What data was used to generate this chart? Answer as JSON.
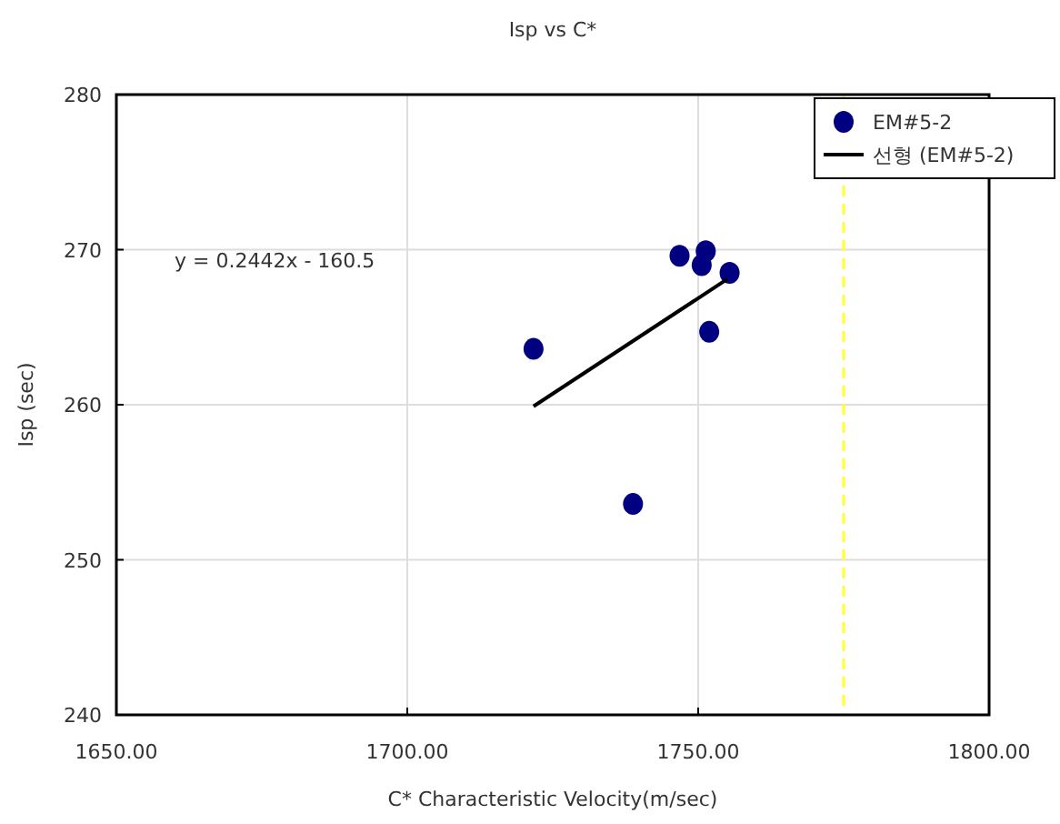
{
  "chart_data": {
    "type": "scatter",
    "title": "Isp vs C*",
    "xlabel": "C* Characteristic Velocity(m/sec)",
    "ylabel": "Isp (sec)",
    "xlim": [
      1650,
      1800
    ],
    "xticks": [
      {
        "value": 1650,
        "label": "1650.00"
      },
      {
        "value": 1700,
        "label": "1700.00"
      },
      {
        "value": 1750,
        "label": "1750.00"
      },
      {
        "value": 1800,
        "label": "1800.00"
      }
    ],
    "ylim": [
      240,
      280
    ],
    "yticks": [
      240,
      250,
      260,
      270,
      280
    ],
    "grid": true,
    "legend": "top right",
    "annotations": [
      "y = 0.2442x - 160.5"
    ],
    "ref_lines": [
      {
        "axis": "x",
        "value": 1775,
        "color": "#ffff33",
        "line_style": "dashed"
      }
    ],
    "series": [
      {
        "name": "EM#5-2",
        "marker": "circle",
        "color": "#000080",
        "x": [
          1721.7,
          1738.8,
          1746.8,
          1751.3,
          1750.6,
          1755.4,
          1751.9
        ],
        "values": [
          263.6,
          253.6,
          269.6,
          269.9,
          269.0,
          268.5,
          264.7
        ]
      },
      {
        "name": "선형 (EM#5-2)",
        "type": "line",
        "marker": "none",
        "line_style": "solid",
        "color": "#000000",
        "x": [
          1721.7,
          1755.0
        ],
        "values": [
          259.9,
          268.1
        ]
      }
    ]
  }
}
